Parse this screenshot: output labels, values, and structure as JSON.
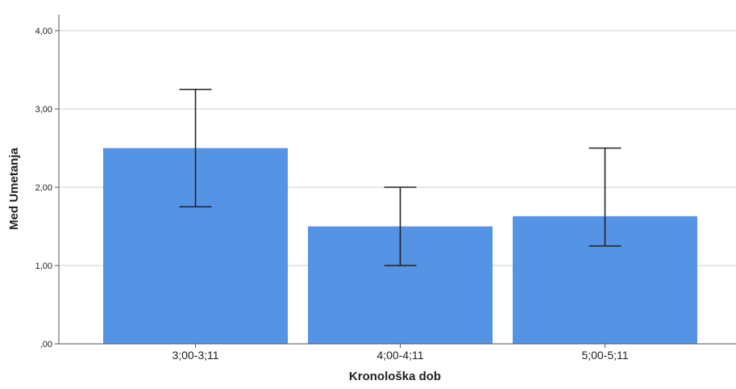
{
  "chart_data": {
    "type": "bar",
    "categories": [
      "3;00-3;11",
      "4;00-4;11",
      "5;00-5;11"
    ],
    "values": [
      2.5,
      1.5,
      1.63
    ],
    "error_low": [
      1.75,
      1.0,
      1.25
    ],
    "error_high": [
      3.25,
      2.0,
      2.5
    ],
    "xlabel": "Kronološka dob",
    "ylabel": "Med Umetanja",
    "ylim": [
      0,
      4
    ],
    "yticks": [
      0,
      1,
      2,
      3,
      4
    ],
    "ytick_labels": [
      ",00",
      "1,00",
      "2,00",
      "3,00",
      "4,00"
    ],
    "grid": true,
    "colors": {
      "bar": "#5593e5",
      "grid": "#d0d0d0",
      "axis": "#555555",
      "error": "#222222"
    }
  }
}
